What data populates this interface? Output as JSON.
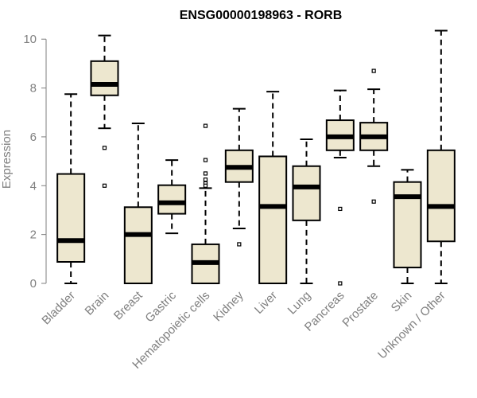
{
  "chart_data": {
    "type": "boxplot",
    "title": "ENSG00000198963 - RORB",
    "xlabel": "",
    "ylabel": "Expression",
    "ylim": [
      0,
      10.3
    ],
    "yticks": [
      0,
      2,
      4,
      6,
      8,
      10
    ],
    "colors": {
      "box_fill": "#ede7cf",
      "stroke": "#000000",
      "axis": "#7f7f7f"
    },
    "categories": [
      "Bladder",
      "Brain",
      "Breast",
      "Gastric",
      "Hematopoietic cells",
      "Kidney",
      "Liver",
      "Lung",
      "Pancreas",
      "Prostate",
      "Skin",
      "Unknown / Other"
    ],
    "series": [
      {
        "name": "Bladder",
        "min": 0.0,
        "q1": 0.88,
        "median": 1.75,
        "q3": 4.48,
        "max": 7.75,
        "outliers": []
      },
      {
        "name": "Brain",
        "min": 6.35,
        "q1": 7.7,
        "median": 8.15,
        "q3": 9.1,
        "max": 10.15,
        "outliers": [
          5.55,
          4.0
        ]
      },
      {
        "name": "Breast",
        "min": 0.0,
        "q1": 0.0,
        "median": 2.0,
        "q3": 3.12,
        "max": 6.55,
        "outliers": []
      },
      {
        "name": "Gastric",
        "min": 2.05,
        "q1": 2.85,
        "median": 3.3,
        "q3": 4.02,
        "max": 5.05,
        "outliers": []
      },
      {
        "name": "Hematopoietic cells",
        "min": 0.0,
        "q1": 0.0,
        "median": 0.85,
        "q3": 1.6,
        "max": 3.9,
        "outliers": [
          6.45,
          5.05,
          4.5,
          4.25,
          4.1,
          4.0
        ]
      },
      {
        "name": "Kidney",
        "min": 2.25,
        "q1": 4.15,
        "median": 4.75,
        "q3": 5.45,
        "max": 7.15,
        "outliers": [
          1.6
        ]
      },
      {
        "name": "Liver",
        "min": 0.0,
        "q1": 0.0,
        "median": 3.15,
        "q3": 5.2,
        "max": 7.85,
        "outliers": []
      },
      {
        "name": "Lung",
        "min": 0.0,
        "q1": 2.58,
        "median": 3.95,
        "q3": 4.8,
        "max": 5.9,
        "outliers": []
      },
      {
        "name": "Pancreas",
        "min": 5.15,
        "q1": 5.45,
        "median": 6.0,
        "q3": 6.68,
        "max": 7.9,
        "outliers": [
          3.05,
          0.0
        ]
      },
      {
        "name": "Prostate",
        "min": 4.8,
        "q1": 5.45,
        "median": 6.0,
        "q3": 6.58,
        "max": 7.95,
        "outliers": [
          8.7,
          3.35
        ]
      },
      {
        "name": "Skin",
        "min": 0.0,
        "q1": 0.65,
        "median": 3.55,
        "q3": 4.15,
        "max": 4.65,
        "outliers": []
      },
      {
        "name": "Unknown / Other",
        "min": 0.0,
        "q1": 1.72,
        "median": 3.15,
        "q3": 5.45,
        "max": 10.35,
        "outliers": []
      }
    ]
  }
}
